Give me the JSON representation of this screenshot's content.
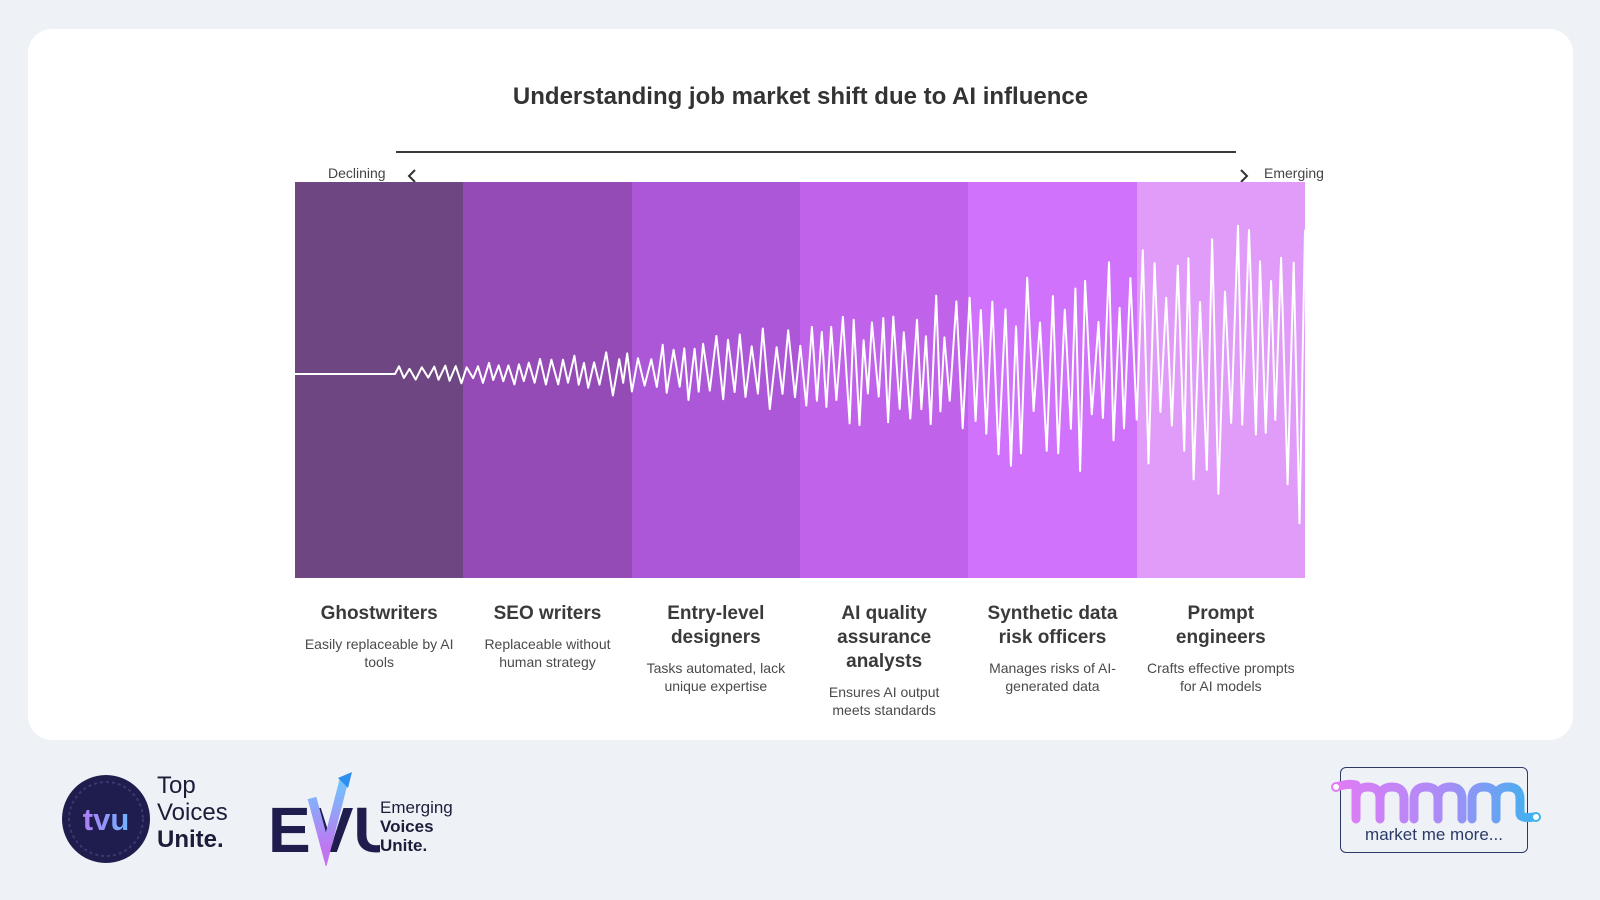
{
  "title": "Understanding job market shift due to AI influence",
  "axis": {
    "left_label": "Declining",
    "right_label": "Emerging"
  },
  "colors": {
    "bands": [
      "#6e4681",
      "#944bb6",
      "#ac57d8",
      "#c062ea",
      "#d072fb",
      "#e09cf8"
    ],
    "wave": "#ffffff",
    "card": "#ffffff",
    "background": "#eef2f7"
  },
  "categories": [
    {
      "title": "Ghostwriters",
      "description": "Easily replaceable by AI tools"
    },
    {
      "title": "SEO writers",
      "description": "Replaceable without human strategy"
    },
    {
      "title": "Entry-level designers",
      "description": "Tasks automated, lack unique expertise"
    },
    {
      "title": "AI quality assurance analysts",
      "description": "Ensures AI output meets standards"
    },
    {
      "title": "Synthetic data risk officers",
      "description": "Manages risks of AI-generated data"
    },
    {
      "title": "Prompt engineers",
      "description": "Crafts effective prompts for AI models"
    }
  ],
  "logos": {
    "tvu": {
      "badge": "tvu",
      "line1": "Top",
      "line2": "Voices",
      "line3": "Unite."
    },
    "evu": {
      "mark": "EVU",
      "line1": "Emerging",
      "line2": "Voices",
      "line3": "Unite."
    },
    "mmm": {
      "mark": "mmm",
      "tagline": "market me more..."
    }
  }
}
